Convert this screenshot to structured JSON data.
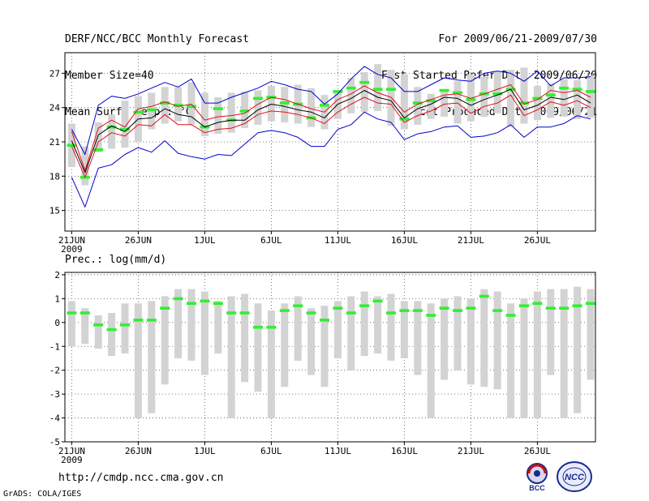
{
  "header": {
    "left": [
      "DERF/NCC/BCC Monthly Forecast",
      "Member Size=40",
      "Mean Surf. Temp.: °C"
    ],
    "right": [
      "For 2009/06/21-2009/07/30",
      "Fcst Started Refer Date 2009/06/20",
      "Fcst Produced Date 2009/06/21"
    ]
  },
  "footer": {
    "url": "http://cmdp.ncc.cma.gov.cn",
    "credit": "GrADS: COLA/IGES",
    "logo_left_text": "BCC",
    "logo_right_text": "NCC"
  },
  "colors": {
    "ensemble_mean": "#000000",
    "inner_bounds": "#e0101e",
    "outer_bounds": "#0000cc",
    "range_bars": "#d3d3d3",
    "median_marks": "#33ee33",
    "grid": "#555555"
  },
  "chart_data": [
    {
      "type": "line",
      "title": "Mean Surf. Temp.: °C",
      "ylabel": "Mean Surf. Temp. (°C)",
      "ylim": [
        13.2,
        28.8
      ],
      "yticks": [
        15,
        18,
        21,
        24,
        27
      ],
      "x_tick_days": [
        1,
        6,
        11,
        16,
        21,
        26,
        31,
        36
      ],
      "x_tick_labels": [
        "21JUN",
        "26JUN",
        "1JUL",
        "6JUL",
        "11JUL",
        "16JUL",
        "21JUL",
        "26JUL"
      ],
      "x_year_label": "2009",
      "grid": true,
      "range_bar_low": [
        18.8,
        17.2,
        20.1,
        20.4,
        20.5,
        21.0,
        22.1,
        22.6,
        22.8,
        22.5,
        21.5,
        21.7,
        21.8,
        22.2,
        22.5,
        22.8,
        22.7,
        22.6,
        22.3,
        22.1,
        23.0,
        23.5,
        23.6,
        23.7,
        22.4,
        22.1,
        22.5,
        23.0,
        23.2,
        22.6,
        22.8,
        23.2,
        23.5,
        22.3,
        22.6,
        22.9,
        23.1,
        23.2,
        23.0,
        23.1
      ],
      "range_bar_high": [
        22.6,
        20.6,
        22.7,
        23.4,
        24.6,
        25.0,
        25.3,
        25.8,
        25.8,
        26.2,
        25.3,
        24.9,
        25.3,
        25.4,
        25.5,
        25.9,
        25.8,
        26.0,
        25.7,
        25.1,
        25.4,
        26.6,
        27.1,
        27.8,
        27.3,
        26.9,
        25.8,
        25.2,
        25.5,
        26.3,
        26.9,
        26.7,
        27.2,
        27.3,
        27.5,
        25.9,
        26.1,
        26.5,
        26.4,
        26.8
      ],
      "median_marks": [
        20.7,
        17.9,
        20.3,
        22.3,
        22.1,
        23.6,
        23.8,
        24.4,
        24.2,
        24.1,
        22.3,
        23.9,
        22.9,
        23.7,
        24.8,
        24.9,
        24.4,
        24.3,
        23.1,
        24.2,
        25.4,
        25.7,
        26.2,
        25.6,
        25.6,
        23.0,
        24.4,
        24.6,
        25.5,
        25.3,
        24.7,
        25.2,
        25.2,
        25.6,
        24.4,
        24.8,
        25.1,
        25.7,
        25.6,
        25.4
      ],
      "series": [
        {
          "name": "Outer upper",
          "color": "#0000cc",
          "values": [
            22.1,
            19.9,
            24.2,
            25.0,
            24.8,
            25.2,
            25.7,
            26.2,
            25.8,
            26.5,
            24.4,
            24.4,
            24.9,
            25.3,
            25.7,
            26.3,
            26.0,
            25.6,
            25.4,
            24.3,
            25.2,
            26.5,
            27.6,
            26.9,
            26.6,
            25.4,
            25.4,
            26.0,
            26.6,
            26.4,
            26.3,
            27.0,
            27.2,
            27.0,
            26.3,
            27.2,
            25.9,
            26.6,
            26.6,
            26.7
          ]
        },
        {
          "name": "Inner upper",
          "color": "#e0101e",
          "values": [
            21.9,
            18.5,
            22.2,
            22.9,
            22.3,
            23.9,
            24.1,
            24.5,
            24.1,
            24.3,
            22.9,
            23.2,
            23.3,
            23.5,
            24.3,
            24.9,
            24.7,
            24.3,
            23.9,
            23.6,
            24.7,
            25.2,
            25.9,
            25.3,
            24.9,
            23.6,
            24.3,
            24.7,
            25.1,
            25.2,
            24.8,
            25.2,
            25.6,
            26.0,
            24.3,
            24.7,
            25.5,
            25.3,
            25.5,
            24.9
          ]
        },
        {
          "name": "Ensemble mean",
          "color": "#000000",
          "values": [
            21.1,
            18.3,
            21.6,
            22.4,
            21.9,
            23.0,
            23.1,
            23.9,
            23.4,
            23.2,
            22.3,
            22.7,
            22.9,
            22.9,
            23.8,
            24.3,
            24.1,
            23.8,
            23.6,
            23.1,
            24.3,
            24.8,
            25.5,
            24.9,
            24.6,
            23.1,
            23.9,
            24.3,
            24.9,
            24.8,
            24.2,
            24.7,
            25.1,
            25.6,
            23.8,
            24.2,
            24.9,
            24.7,
            25.1,
            24.4
          ]
        },
        {
          "name": "Inner lower",
          "color": "#e0101e",
          "values": [
            20.6,
            17.9,
            21.0,
            21.8,
            21.5,
            22.5,
            22.4,
            23.4,
            22.5,
            22.5,
            21.8,
            22.1,
            22.2,
            22.6,
            23.4,
            23.7,
            23.6,
            23.4,
            23.1,
            22.6,
            23.6,
            24.3,
            24.9,
            24.4,
            24.3,
            22.7,
            23.3,
            23.7,
            24.3,
            24.4,
            23.5,
            24.1,
            24.4,
            25.1,
            23.3,
            23.8,
            24.5,
            24.2,
            24.6,
            24.0
          ]
        },
        {
          "name": "Outer lower",
          "color": "#0000cc",
          "values": [
            17.9,
            15.3,
            18.7,
            19.0,
            19.9,
            20.5,
            20.1,
            21.1,
            20.0,
            19.7,
            19.5,
            19.9,
            19.8,
            20.8,
            21.8,
            22.0,
            21.8,
            21.4,
            20.6,
            20.6,
            22.1,
            22.5,
            23.6,
            23.0,
            22.7,
            21.2,
            21.7,
            21.9,
            22.3,
            22.4,
            21.4,
            21.5,
            21.8,
            22.5,
            21.4,
            22.3,
            22.3,
            22.6,
            23.3,
            23.0
          ]
        }
      ]
    },
    {
      "type": "line",
      "title": "Prec.: log(mm/d)",
      "ylabel": "log(mm/d)",
      "ylim": [
        -5,
        2.1
      ],
      "yticks": [
        -5,
        -4,
        -3,
        -2,
        -1,
        0,
        1,
        2
      ],
      "x_tick_days": [
        1,
        6,
        11,
        16,
        21,
        26,
        31,
        36
      ],
      "x_tick_labels": [
        "21JUN",
        "26JUN",
        "1JUL",
        "6JUL",
        "11JUL",
        "16JUL",
        "21JUL",
        "26JUL"
      ],
      "x_year_label": "2009",
      "grid": true,
      "range_bar_low": [
        -1.0,
        -0.9,
        -1.1,
        -1.4,
        -1.3,
        -4.0,
        -3.8,
        -2.6,
        -1.5,
        -1.6,
        -2.2,
        -1.3,
        -4.0,
        -2.5,
        -2.9,
        -4.0,
        -2.7,
        -1.6,
        -2.2,
        -2.7,
        -1.5,
        -2.0,
        -1.4,
        -1.3,
        -1.6,
        -1.5,
        -2.2,
        -4.0,
        -2.4,
        -2.0,
        -2.6,
        -2.7,
        -2.8,
        -4.0,
        -4.0,
        -4.0,
        -2.2,
        -4.0,
        -3.8,
        -2.4
      ],
      "range_bar_high": [
        0.9,
        0.6,
        0.3,
        0.4,
        0.8,
        0.8,
        0.9,
        1.1,
        1.4,
        1.4,
        1.3,
        0.9,
        1.1,
        1.2,
        0.8,
        0.5,
        0.8,
        1.1,
        0.6,
        0.7,
        0.9,
        1.1,
        1.3,
        1.1,
        1.2,
        0.9,
        0.9,
        0.8,
        1.0,
        1.1,
        1.0,
        1.4,
        1.3,
        0.8,
        1.0,
        1.3,
        1.4,
        1.4,
        1.5,
        1.4
      ],
      "median_marks": [
        0.4,
        0.4,
        -0.1,
        -0.3,
        -0.1,
        0.1,
        0.1,
        0.6,
        1.0,
        0.8,
        0.9,
        0.8,
        0.4,
        0.4,
        -0.2,
        -0.2,
        0.5,
        0.7,
        0.4,
        0.1,
        0.6,
        0.4,
        0.7,
        0.9,
        0.4,
        0.5,
        0.5,
        0.3,
        0.6,
        0.5,
        0.6,
        1.1,
        0.5,
        0.3,
        0.7,
        0.8,
        0.6,
        0.6,
        0.7,
        0.8
      ]
    }
  ]
}
